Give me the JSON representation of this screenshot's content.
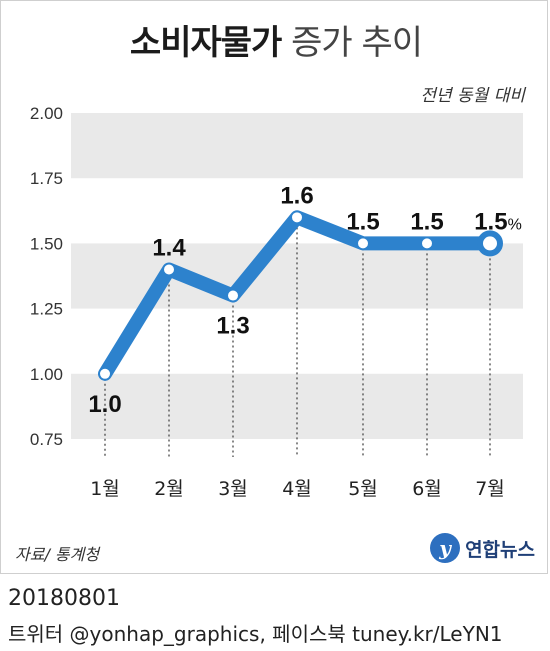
{
  "title_bold": "소비자물가",
  "title_light": " 증가 추이",
  "subtitle": "전년 동월 대비",
  "source": "자료/ 통계청",
  "logo_text": "연합뉴스",
  "logo_mark": "y",
  "footer": {
    "date": "20180801",
    "credit": "트위터 @yonhap_graphics, 페이스북 tuney.kr/LeYN1"
  },
  "colors": {
    "line": "#2d82cd",
    "band": "#e9e9e9",
    "grid": "#c8c8c8"
  },
  "chart_data": {
    "type": "line",
    "categories": [
      "1월",
      "2월",
      "3월",
      "4월",
      "5월",
      "6월",
      "7월"
    ],
    "values": [
      1.0,
      1.4,
      1.3,
      1.6,
      1.5,
      1.5,
      1.5
    ],
    "value_labels": [
      "1.0",
      "1.4",
      "1.3",
      "1.6",
      "1.5",
      "1.5",
      "1.5"
    ],
    "last_unit": "%",
    "ylim": [
      0.75,
      2.0
    ],
    "yticks": [
      "2.00",
      "1.75",
      "1.50",
      "1.25",
      "1.00",
      "0.75"
    ],
    "ytick_values": [
      2.0,
      1.75,
      1.5,
      1.25,
      1.0,
      0.75
    ],
    "grid": true,
    "title": "소비자물가 증가 추이"
  }
}
